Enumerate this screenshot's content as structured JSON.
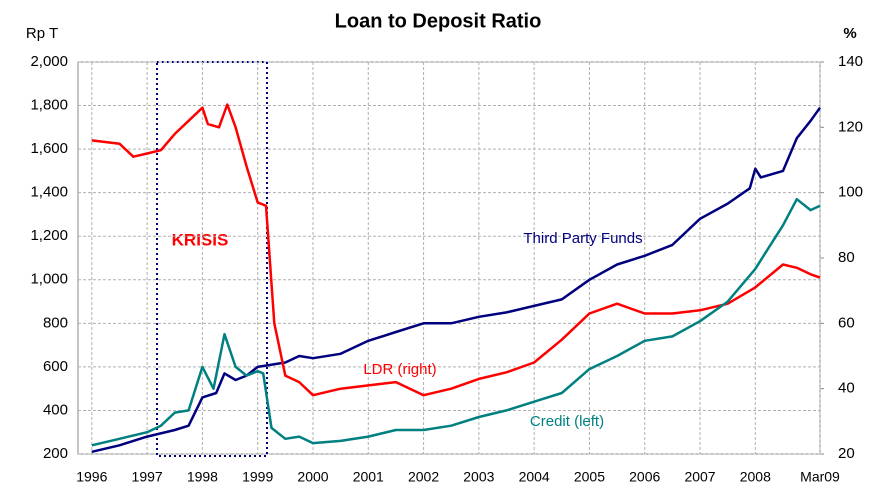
{
  "chart_data": {
    "type": "line",
    "title": "Loan to Deposit Ratio",
    "y_label": "Rp T",
    "y2_label": "%",
    "xlim": [
      1995.75,
      2009.17
    ],
    "xticks": [
      1996,
      1997,
      1998,
      1999,
      2000,
      2001,
      2002,
      2003,
      2004,
      2005,
      2006,
      2007,
      2008,
      {
        "value": 2009.17,
        "label": "Mar09"
      }
    ],
    "ylim": [
      200,
      2000
    ],
    "yticks": [
      200,
      400,
      600,
      800,
      {
        "value": 1000,
        "label": "1,000"
      },
      {
        "value": 1200,
        "label": "1,200"
      },
      {
        "value": 1400,
        "label": "1,400"
      },
      {
        "value": 1600,
        "label": "1,600"
      },
      {
        "value": 1800,
        "label": "1,800"
      },
      {
        "value": 2000,
        "label": "2,000"
      }
    ],
    "y2lim": [
      20,
      140
    ],
    "y2ticks": [
      20,
      40,
      60,
      80,
      100,
      120,
      140
    ],
    "grid": true,
    "annotations": [
      "KRISIS"
    ],
    "series": [
      {
        "name": "Third Party Funds",
        "color": "#00007f",
        "x": [
          1996.0,
          1996.5,
          1997.0,
          1997.5,
          1997.75,
          1998.0,
          1998.25,
          1998.4,
          1998.6,
          1998.8,
          1999.0,
          1999.5,
          1999.75,
          2000.0,
          2000.5,
          2001.0,
          2001.5,
          2002.0,
          2002.5,
          2003.0,
          2003.5,
          2004.0,
          2004.5,
          2005.0,
          2005.5,
          2006.0,
          2006.5,
          2007.0,
          2007.5,
          2007.9,
          2008.0,
          2008.1,
          2008.5,
          2008.75,
          2009.0,
          2009.17
        ],
        "values": [
          210,
          240,
          280,
          310,
          330,
          460,
          480,
          570,
          540,
          560,
          600,
          620,
          650,
          640,
          660,
          720,
          760,
          800,
          800,
          830,
          850,
          880,
          910,
          1000,
          1070,
          1110,
          1160,
          1280,
          1350,
          1420,
          1510,
          1470,
          1500,
          1650,
          1730,
          1790
        ]
      },
      {
        "name": "LDR (right)",
        "color": "#ff0000",
        "axis": "y2",
        "x": [
          1996.0,
          1996.5,
          1996.75,
          1997.0,
          1997.25,
          1997.5,
          1997.75,
          1998.0,
          1998.1,
          1998.3,
          1998.45,
          1998.6,
          1998.8,
          1999.0,
          1999.15,
          1999.3,
          1999.5,
          1999.75,
          2000.0,
          2000.5,
          2001.0,
          2001.5,
          2002.0,
          2002.5,
          2003.0,
          2003.5,
          2004.0,
          2004.5,
          2005.0,
          2005.5,
          2006.0,
          2006.5,
          2007.0,
          2007.5,
          2008.0,
          2008.5,
          2008.75,
          2009.0,
          2009.17
        ],
        "values": [
          116,
          115,
          111,
          112,
          113,
          118,
          122,
          126,
          121,
          120,
          127,
          120,
          108,
          97,
          96,
          60,
          44,
          42,
          38,
          40,
          41,
          42,
          38,
          40,
          43,
          45,
          48,
          55,
          63,
          66,
          63,
          63,
          64,
          66,
          71,
          78,
          77,
          75,
          74
        ]
      },
      {
        "name": "Credit (left)",
        "color": "#008080",
        "x": [
          1996.0,
          1996.5,
          1997.0,
          1997.25,
          1997.5,
          1997.75,
          1998.0,
          1998.2,
          1998.4,
          1998.6,
          1998.8,
          1999.0,
          1999.1,
          1999.25,
          1999.5,
          1999.75,
          2000.0,
          2000.5,
          2001.0,
          2001.5,
          2002.0,
          2002.5,
          2003.0,
          2003.5,
          2004.0,
          2004.5,
          2005.0,
          2005.5,
          2006.0,
          2006.5,
          2007.0,
          2007.5,
          2008.0,
          2008.25,
          2008.5,
          2008.75,
          2009.0,
          2009.17
        ],
        "values": [
          240,
          270,
          300,
          330,
          390,
          400,
          600,
          500,
          750,
          600,
          560,
          580,
          570,
          320,
          270,
          280,
          250,
          260,
          280,
          310,
          310,
          330,
          370,
          400,
          440,
          480,
          590,
          650,
          720,
          740,
          810,
          900,
          1050,
          1150,
          1250,
          1370,
          1320,
          1340
        ]
      }
    ]
  }
}
